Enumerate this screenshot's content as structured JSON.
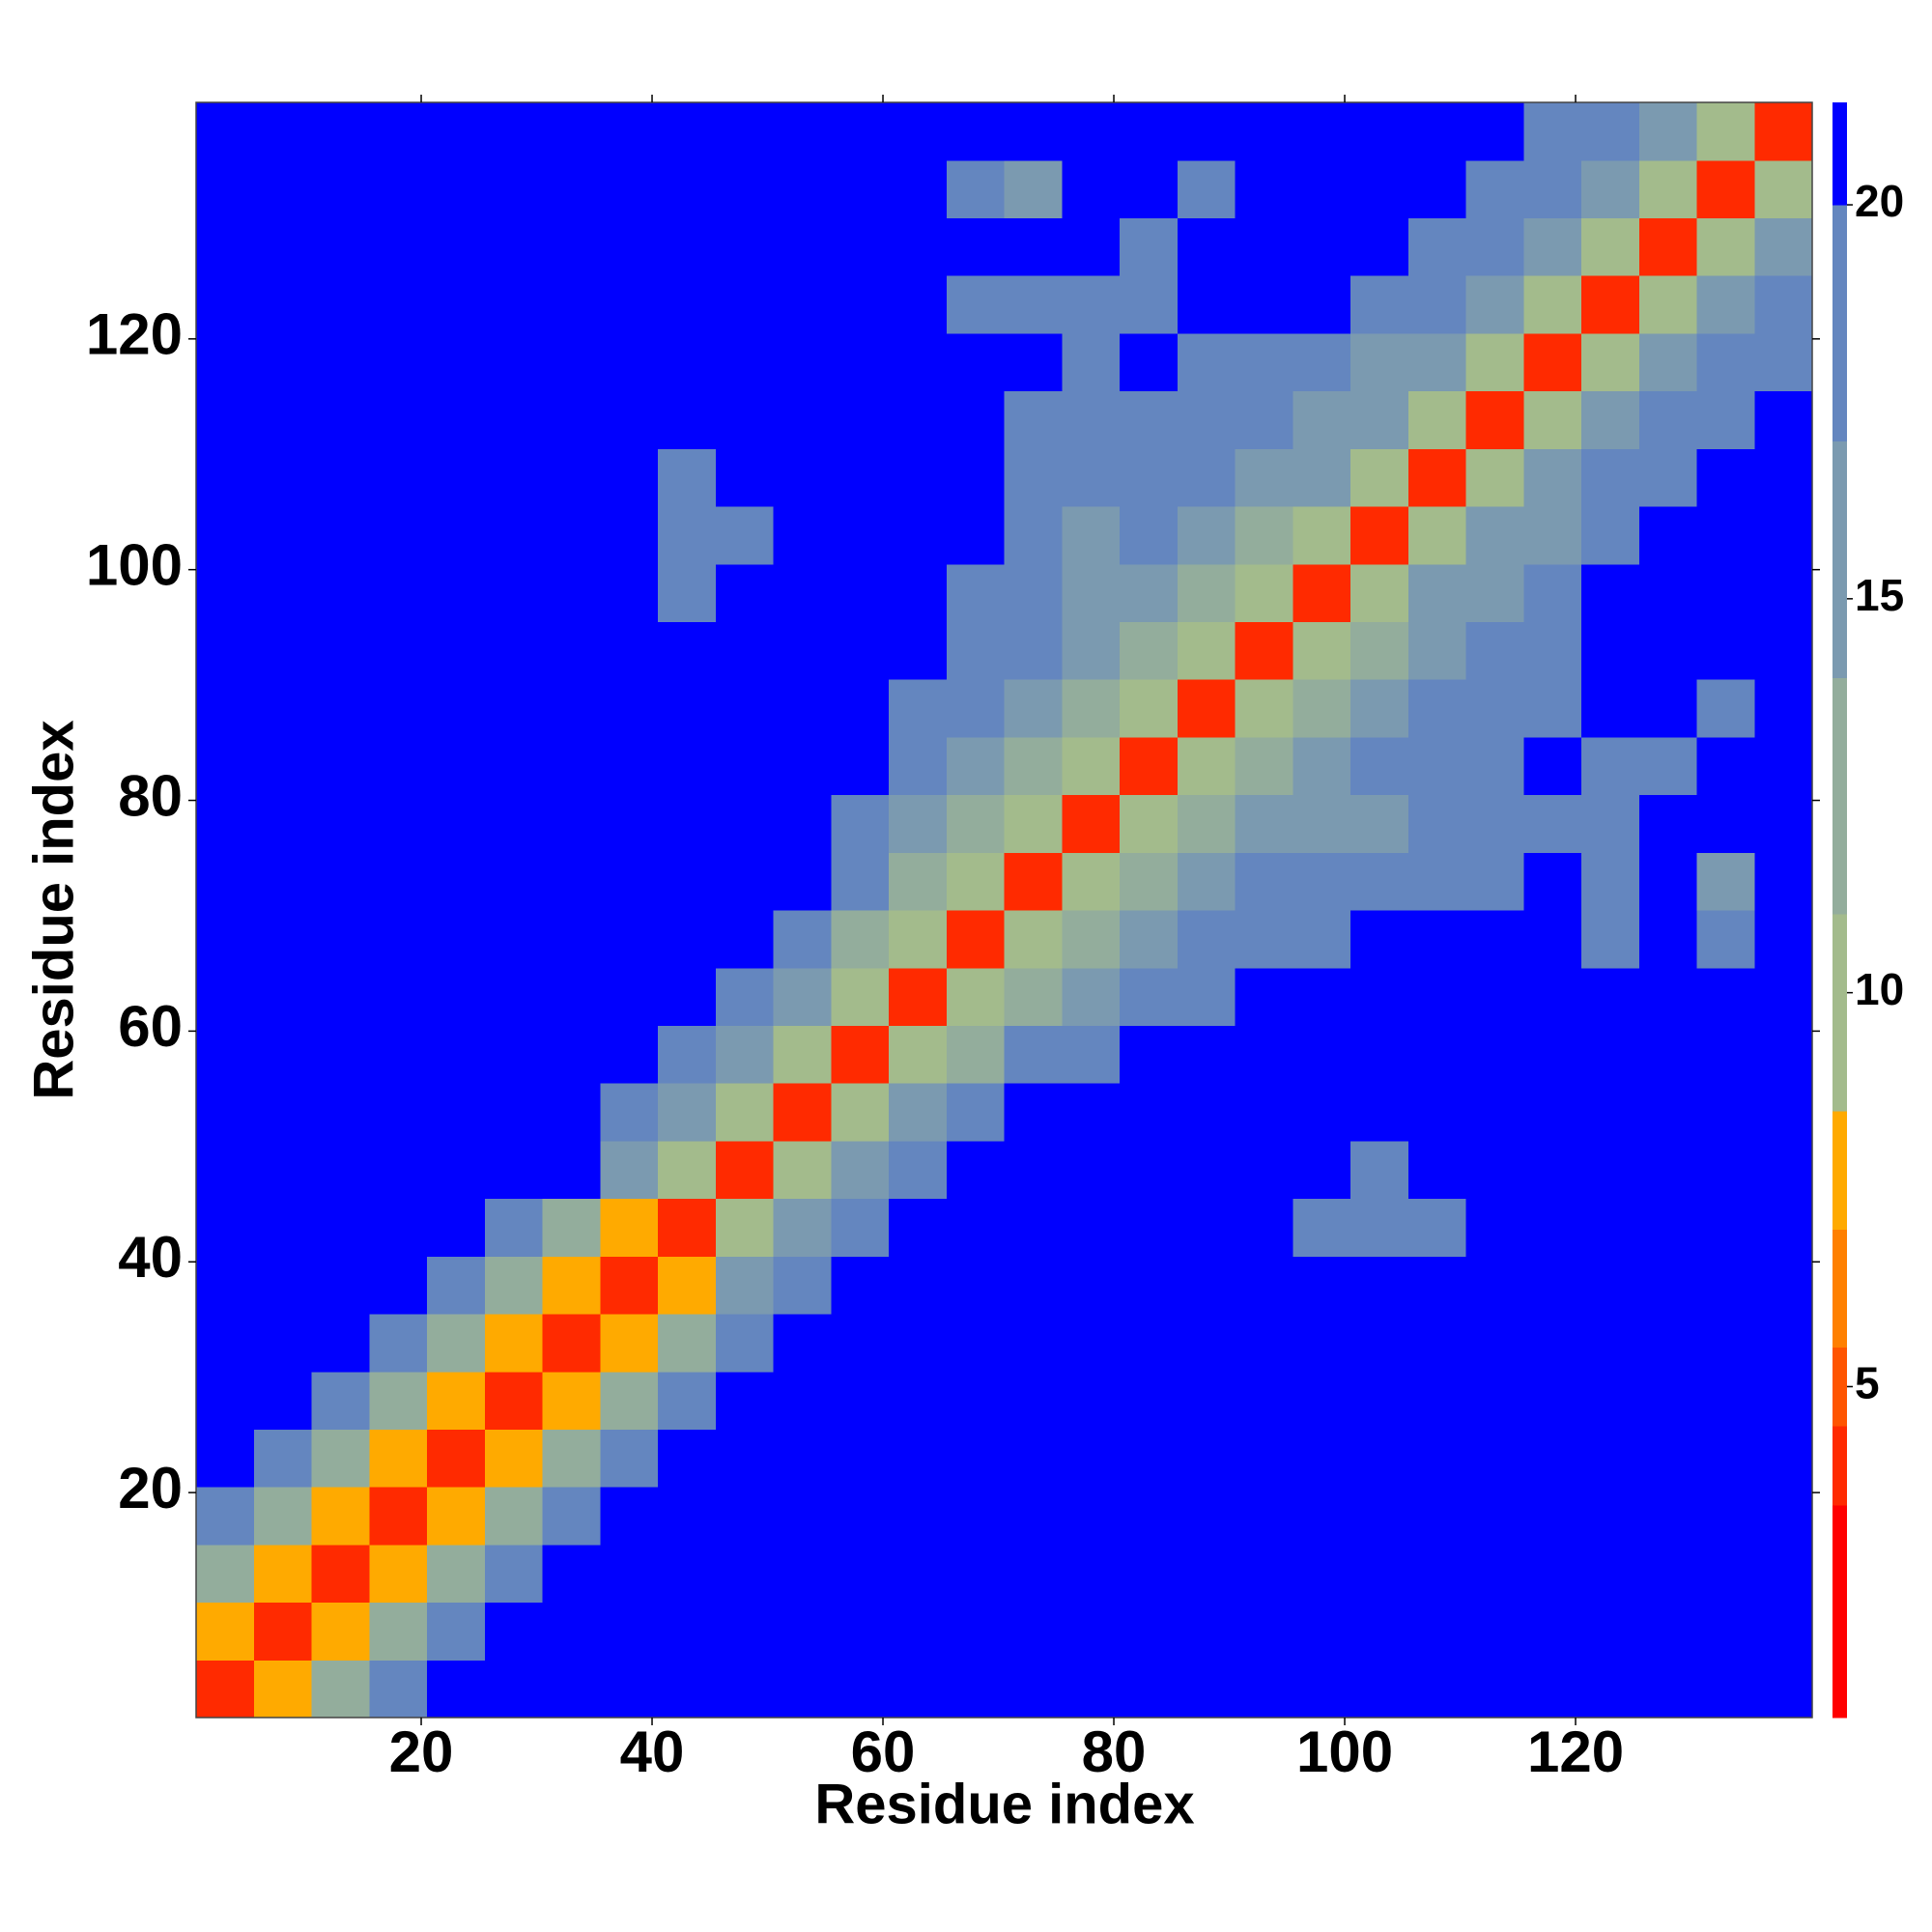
{
  "chart_data": {
    "type": "heatmap",
    "x_label": "Residue index",
    "y_label": "Residue index",
    "x": [
      3,
      8,
      13,
      18,
      23,
      28,
      33,
      38,
      43,
      48,
      53,
      58,
      63,
      68,
      73,
      78,
      83,
      88,
      93,
      98,
      103,
      108,
      113,
      118,
      123,
      128,
      133,
      138
    ],
    "y": [
      3,
      8,
      13,
      18,
      23,
      28,
      33,
      38,
      43,
      48,
      53,
      58,
      63,
      68,
      73,
      78,
      83,
      88,
      93,
      98,
      103,
      108,
      113,
      118,
      123,
      128,
      133,
      138
    ],
    "z": [
      [
        4,
        8,
        13,
        19,
        21,
        21,
        21,
        21,
        21,
        21,
        21,
        21,
        21,
        21,
        21,
        21,
        21,
        21,
        21,
        21,
        21,
        21,
        21,
        21,
        21,
        21,
        21,
        21
      ],
      [
        8,
        4,
        8,
        13,
        19,
        21,
        21,
        21,
        21,
        21,
        21,
        21,
        21,
        21,
        21,
        21,
        21,
        21,
        21,
        21,
        21,
        21,
        21,
        21,
        21,
        21,
        21,
        21
      ],
      [
        13,
        8,
        4,
        8,
        13,
        19,
        21,
        21,
        21,
        21,
        21,
        21,
        21,
        21,
        21,
        21,
        21,
        21,
        21,
        21,
        21,
        21,
        21,
        21,
        21,
        21,
        21,
        21
      ],
      [
        19,
        13,
        8,
        4,
        8,
        13,
        19,
        21,
        21,
        21,
        21,
        21,
        21,
        21,
        21,
        21,
        21,
        21,
        21,
        21,
        21,
        21,
        21,
        21,
        21,
        21,
        21,
        21
      ],
      [
        21,
        19,
        13,
        8,
        4,
        8,
        13,
        19,
        21,
        21,
        21,
        21,
        21,
        21,
        21,
        21,
        21,
        21,
        21,
        21,
        21,
        21,
        21,
        21,
        21,
        21,
        21,
        21
      ],
      [
        21,
        21,
        19,
        13,
        8,
        4,
        8,
        13,
        19,
        21,
        21,
        21,
        21,
        21,
        21,
        21,
        21,
        21,
        21,
        21,
        21,
        21,
        21,
        21,
        21,
        21,
        21,
        21
      ],
      [
        21,
        21,
        21,
        19,
        13,
        8,
        4,
        8,
        13,
        19,
        21,
        21,
        21,
        21,
        21,
        21,
        21,
        21,
        21,
        21,
        21,
        21,
        21,
        21,
        21,
        21,
        21,
        21
      ],
      [
        21,
        21,
        21,
        21,
        19,
        13,
        8,
        4,
        8,
        14,
        19,
        21,
        21,
        21,
        21,
        21,
        21,
        21,
        21,
        21,
        21,
        21,
        21,
        21,
        21,
        21,
        21,
        21
      ],
      [
        21,
        21,
        21,
        21,
        21,
        19,
        13,
        8,
        4,
        9,
        16,
        19,
        21,
        21,
        21,
        21,
        21,
        21,
        21,
        18,
        18,
        18,
        21,
        21,
        21,
        21,
        21,
        21
      ],
      [
        21,
        21,
        21,
        21,
        21,
        21,
        21,
        14,
        9,
        4,
        9,
        16,
        19,
        21,
        21,
        21,
        21,
        21,
        21,
        21,
        19,
        21,
        21,
        21,
        21,
        21,
        21,
        21
      ],
      [
        21,
        21,
        21,
        21,
        21,
        21,
        21,
        19,
        16,
        9,
        4,
        9,
        15,
        19,
        21,
        21,
        21,
        21,
        21,
        21,
        21,
        21,
        21,
        21,
        21,
        21,
        21,
        21
      ],
      [
        21,
        21,
        21,
        21,
        21,
        21,
        21,
        21,
        19,
        16,
        9,
        4,
        9,
        13,
        17,
        19,
        21,
        21,
        21,
        21,
        21,
        21,
        21,
        21,
        21,
        21,
        21,
        21
      ],
      [
        21,
        21,
        21,
        21,
        21,
        21,
        21,
        21,
        21,
        19,
        15,
        9,
        4,
        9,
        13,
        15,
        17,
        19,
        21,
        21,
        21,
        21,
        21,
        21,
        21,
        21,
        21,
        21
      ],
      [
        21,
        21,
        21,
        21,
        21,
        21,
        21,
        21,
        21,
        21,
        19,
        13,
        9,
        4,
        9,
        13,
        15,
        17,
        17,
        19,
        21,
        21,
        21,
        21,
        18,
        21,
        18,
        21
      ],
      [
        21,
        21,
        21,
        21,
        21,
        21,
        21,
        21,
        21,
        21,
        21,
        17,
        13,
        9,
        4,
        9,
        12,
        15,
        17,
        17,
        17,
        19,
        19,
        21,
        17,
        21,
        16,
        21
      ],
      [
        21,
        21,
        21,
        21,
        21,
        21,
        21,
        21,
        21,
        21,
        21,
        19,
        15,
        13,
        9,
        4,
        9,
        12,
        15,
        14,
        16,
        17,
        17,
        19,
        19,
        21,
        21,
        21
      ],
      [
        21,
        21,
        21,
        21,
        21,
        21,
        21,
        21,
        21,
        21,
        21,
        21,
        17,
        15,
        12,
        9,
        4,
        9,
        13,
        16,
        17,
        17,
        18,
        21,
        19,
        19,
        21,
        21
      ],
      [
        21,
        21,
        21,
        21,
        21,
        21,
        21,
        21,
        21,
        21,
        21,
        21,
        19,
        17,
        15,
        12,
        9,
        4,
        9,
        13,
        16,
        17,
        17,
        18,
        21,
        21,
        19,
        21
      ],
      [
        21,
        21,
        21,
        21,
        21,
        21,
        21,
        21,
        21,
        21,
        21,
        21,
        21,
        17,
        17,
        15,
        13,
        9,
        4,
        9,
        13,
        16,
        17,
        18,
        21,
        21,
        21,
        21
      ],
      [
        21,
        21,
        21,
        21,
        21,
        21,
        21,
        21,
        18,
        21,
        21,
        21,
        21,
        19,
        17,
        14,
        16,
        13,
        9,
        4,
        9,
        14,
        16,
        18,
        21,
        21,
        21,
        21
      ],
      [
        21,
        21,
        21,
        21,
        21,
        21,
        21,
        21,
        18,
        19,
        21,
        21,
        21,
        21,
        17,
        16,
        17,
        16,
        13,
        9,
        4,
        9,
        14,
        16,
        18,
        21,
        21,
        21
      ],
      [
        21,
        21,
        21,
        21,
        21,
        21,
        21,
        21,
        18,
        21,
        21,
        21,
        21,
        21,
        19,
        17,
        17,
        17,
        16,
        14,
        9,
        4,
        9,
        14,
        17,
        19,
        21,
        21
      ],
      [
        21,
        21,
        21,
        21,
        21,
        21,
        21,
        21,
        21,
        21,
        21,
        21,
        21,
        21,
        19,
        17,
        18,
        17,
        17,
        16,
        14,
        9,
        4,
        9,
        14,
        17,
        18,
        21
      ],
      [
        21,
        21,
        21,
        21,
        21,
        21,
        21,
        21,
        21,
        21,
        21,
        21,
        21,
        21,
        21,
        19,
        21,
        18,
        18,
        18,
        16,
        14,
        9,
        4,
        9,
        14,
        17,
        17
      ],
      [
        21,
        21,
        21,
        21,
        21,
        21,
        21,
        21,
        21,
        21,
        21,
        21,
        21,
        18,
        17,
        19,
        19,
        21,
        21,
        21,
        18,
        17,
        14,
        9,
        4,
        9,
        14,
        17
      ],
      [
        21,
        21,
        21,
        21,
        21,
        21,
        21,
        21,
        21,
        21,
        21,
        21,
        21,
        21,
        21,
        21,
        19,
        21,
        21,
        21,
        21,
        19,
        17,
        14,
        9,
        4,
        9,
        14
      ],
      [
        21,
        21,
        21,
        21,
        21,
        21,
        21,
        21,
        21,
        21,
        21,
        21,
        21,
        18,
        16,
        21,
        21,
        19,
        21,
        21,
        21,
        21,
        18,
        17,
        14,
        9,
        4,
        9
      ],
      [
        21,
        21,
        21,
        21,
        21,
        21,
        21,
        21,
        21,
        21,
        21,
        21,
        21,
        21,
        21,
        21,
        21,
        21,
        21,
        21,
        21,
        21,
        21,
        17,
        17,
        14,
        9,
        4
      ]
    ],
    "cell_size": 5,
    "xlim": [
      0.5,
      140.5
    ],
    "ylim": [
      0.5,
      140.5
    ],
    "xticks": [
      20,
      40,
      60,
      80,
      100,
      120
    ],
    "yticks": [
      20,
      40,
      60,
      80,
      100,
      120
    ],
    "colorbar": {
      "lim": [
        0.8,
        21.3
      ],
      "ticks": [
        5,
        10,
        15,
        20
      ],
      "levels": [
        0.8,
        3.5,
        4.5,
        5.5,
        7,
        8.5,
        11,
        14,
        17,
        20,
        21.3
      ],
      "colors": [
        "#ff0000",
        "#ff2a00",
        "#ff5500",
        "#ff8000",
        "#ffaa00",
        "#a3bb8c",
        "#93ad9c",
        "#7b9ab0",
        "#6486bf",
        "#0000ff"
      ]
    }
  }
}
